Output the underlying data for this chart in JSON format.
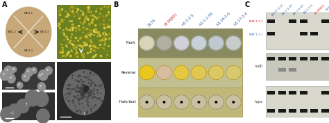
{
  "panel_A_label": "A",
  "panel_B_label": "B",
  "panel_C_label": "C",
  "panel_A_colors": {
    "colony_bg": "#c8a878",
    "yellow_bg": "#6b8020",
    "yellow_fg": "#c8b430",
    "em_dark": "#282828",
    "em_mid": "#484848",
    "em_light": "#888888"
  },
  "panel_B_col_labels": [
    "Q176",
    "IB 08B01",
    "AS 1-2-5",
    "AS 1-2-56",
    "AS 16-2-6",
    "AS 17-2-4"
  ],
  "panel_B_col_colors": [
    "#3060a0",
    "#cc2222",
    "#3060a0",
    "#3060a0",
    "#3060a0",
    "#3060a0"
  ],
  "panel_B_row_labels": [
    "Front",
    "Reverse",
    "Halo test"
  ],
  "panel_B_grid_bg": "#b8a84a",
  "front_row_bg": "#8a8a60",
  "reverse_row_bg": "#c0c090",
  "halo_row_bg": "#c0b878",
  "front_colors": [
    "#d8d4b8",
    "#b0b0a0",
    "#d0d0d8",
    "#c8d0d8",
    "#c0c8d0",
    "#c8ccc8"
  ],
  "reverse_colors": [
    "#e8c820",
    "#d8bca0",
    "#e4c840",
    "#e0c850",
    "#dcc860",
    "#d8c870"
  ],
  "halo_colony_bg": "#c8c0a0",
  "panel_C_col_labels": [
    "AS 17-2-1f",
    "AS 1-2-25",
    "AS 1-2-43",
    "AS 1-2-5",
    "IB 08B01",
    "Q176"
  ],
  "panel_C_col_colors": [
    "#3060a0",
    "#3060a0",
    "#3060a0",
    "#3060a0",
    "#cc2222",
    "#3060a0"
  ],
  "mat21_label": "MAT 1-2-1",
  "mat11_label": "MAT 1-1-1",
  "nsdd_label": "nsdD",
  "hypo_label": "hypo",
  "mat21_color": "#cc2222",
  "mat11_color": "#3060a0",
  "gel_bg": "#d8d8cc",
  "gel_bg2": "#c8c8bc",
  "gel_band_color": "#181818",
  "gel_band_faint": "#888888",
  "background_color": "#ffffff",
  "label_fontsize": 7,
  "col_label_fontsize": 3.8,
  "row_label_fontsize": 3.8,
  "gel_label_fontsize": 3.5,
  "mat21_bands": [
    true,
    false,
    true,
    true,
    false,
    true
  ],
  "mat11_bands": [
    true,
    false,
    false,
    true,
    true,
    false
  ],
  "nsdd_bands_top": [
    true,
    true,
    true,
    true,
    true,
    true
  ],
  "nsdd_bands_bot": [
    false,
    true,
    true,
    false,
    false,
    false
  ],
  "hypo_bands_top": [
    true,
    true,
    true,
    true,
    false,
    true
  ],
  "hypo_bands_bot": [
    true,
    true,
    true,
    true,
    true,
    true
  ]
}
